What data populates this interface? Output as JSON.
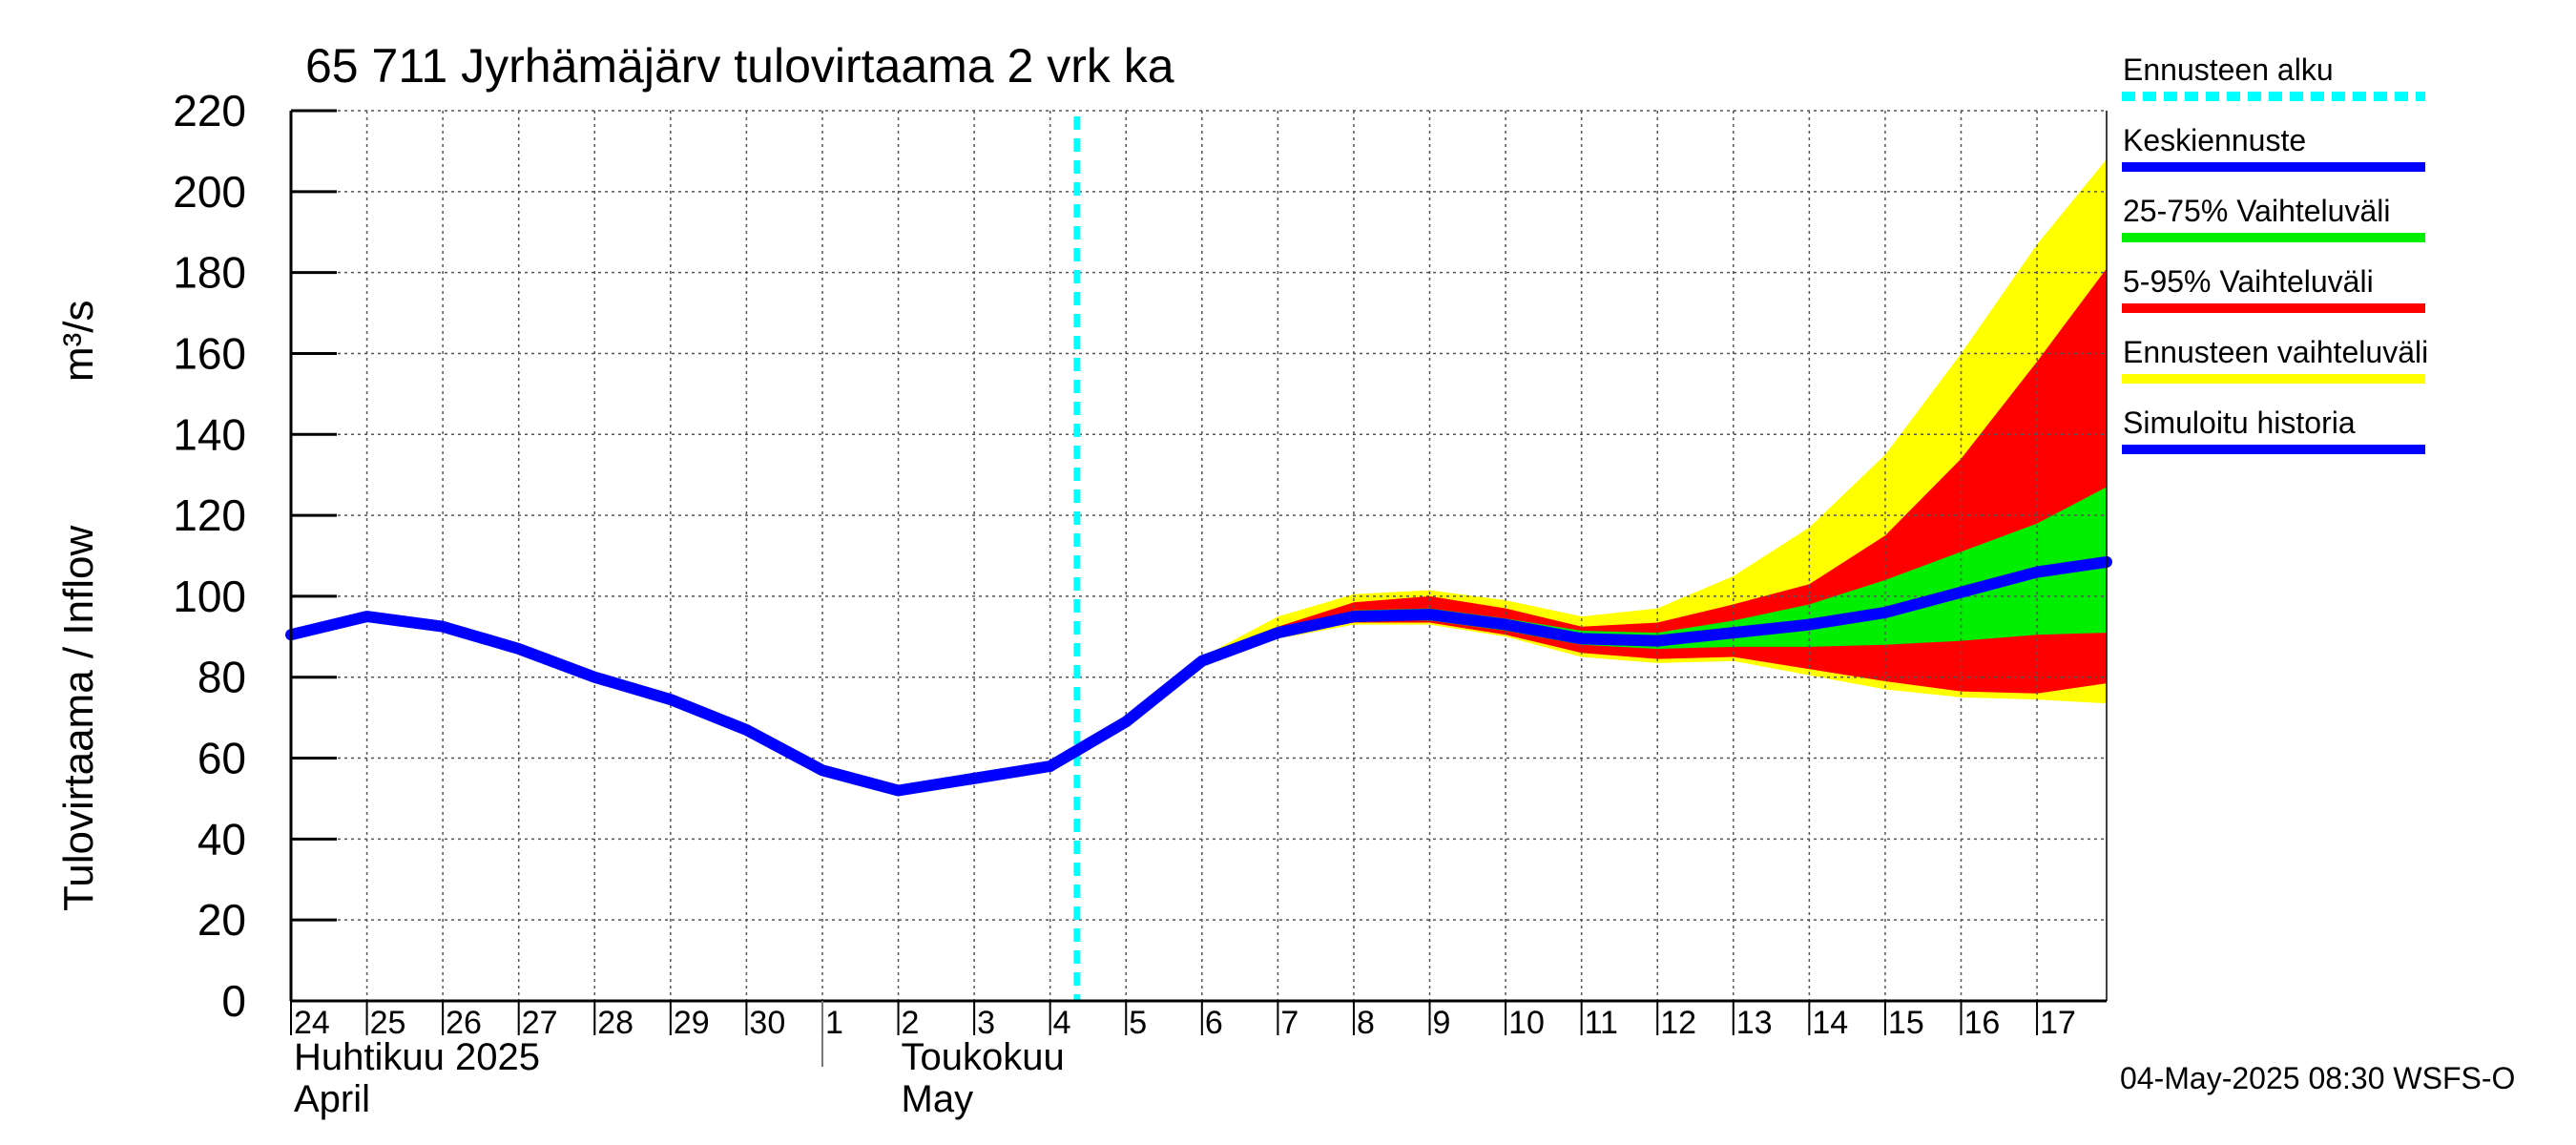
{
  "chart_data": {
    "type": "area",
    "title": "65 711 Jyrhämäjärv tulovirtaama 2 vrk ka",
    "ylabel_fi": "Tulovirtaama / Inflow",
    "yunit": "m³/s",
    "ylim": [
      0,
      220
    ],
    "yticks": [
      0,
      20,
      40,
      60,
      80,
      100,
      120,
      140,
      160,
      180,
      200,
      220
    ],
    "xlim": [
      "2025-04-24",
      "2025-05-17T22:00"
    ],
    "x_day_labels": [
      {
        "date": "2025-04-24",
        "label": "24"
      },
      {
        "date": "2025-04-25",
        "label": "25"
      },
      {
        "date": "2025-04-26",
        "label": "26"
      },
      {
        "date": "2025-04-27",
        "label": "27"
      },
      {
        "date": "2025-04-28",
        "label": "28"
      },
      {
        "date": "2025-04-29",
        "label": "29"
      },
      {
        "date": "2025-04-30",
        "label": "30"
      },
      {
        "date": "2025-05-01",
        "label": "1"
      },
      {
        "date": "2025-05-02",
        "label": "2"
      },
      {
        "date": "2025-05-03",
        "label": "3"
      },
      {
        "date": "2025-05-04",
        "label": "4"
      },
      {
        "date": "2025-05-05",
        "label": "5"
      },
      {
        "date": "2025-05-06",
        "label": "6"
      },
      {
        "date": "2025-05-07",
        "label": "7"
      },
      {
        "date": "2025-05-08",
        "label": "8"
      },
      {
        "date": "2025-05-09",
        "label": "9"
      },
      {
        "date": "2025-05-10",
        "label": "10"
      },
      {
        "date": "2025-05-11",
        "label": "11"
      },
      {
        "date": "2025-05-12",
        "label": "12"
      },
      {
        "date": "2025-05-13",
        "label": "13"
      },
      {
        "date": "2025-05-14",
        "label": "14"
      },
      {
        "date": "2025-05-15",
        "label": "15"
      },
      {
        "date": "2025-05-16",
        "label": "16"
      },
      {
        "date": "2025-05-17",
        "label": "17"
      }
    ],
    "month_labels": [
      {
        "date": "2025-04-24",
        "fi": "Huhtikuu  2025",
        "en": "April"
      },
      {
        "date": "2025-05-02",
        "fi": "Toukokuu",
        "en": "May"
      }
    ],
    "month_boundary": "2025-05-01",
    "forecast_start": "2025-05-04T08:30",
    "grid": true,
    "legend_position": "right",
    "simulated_history": {
      "name": "Simuloitu historia",
      "color": "#0000ff",
      "points": [
        [
          "2025-04-24",
          90.5
        ],
        [
          "2025-04-25",
          95
        ],
        [
          "2025-04-26",
          92.5
        ],
        [
          "2025-04-27",
          87
        ],
        [
          "2025-04-28",
          80
        ],
        [
          "2025-04-29",
          74.5
        ],
        [
          "2025-04-30",
          67
        ],
        [
          "2025-05-01",
          57
        ],
        [
          "2025-05-02",
          52
        ],
        [
          "2025-05-03",
          55
        ],
        [
          "2025-05-04",
          58
        ]
      ]
    },
    "forecast": {
      "dates": [
        "2025-05-04",
        "2025-05-05",
        "2025-05-06",
        "2025-05-07",
        "2025-05-08",
        "2025-05-09",
        "2025-05-10",
        "2025-05-11",
        "2025-05-12",
        "2025-05-13",
        "2025-05-14",
        "2025-05-15",
        "2025-05-16",
        "2025-05-17",
        "2025-05-17T22:00"
      ],
      "median": {
        "name": "Keskiennuste",
        "color": "#0000ff",
        "values": [
          58,
          69,
          84,
          91,
          95,
          95.5,
          93,
          89.5,
          89,
          91,
          93,
          96,
          101,
          106,
          108.5
        ]
      },
      "p25_75": {
        "name": "25-75% Vaihteluväli",
        "color": "#00ee00",
        "low": [
          58,
          69,
          84,
          90.5,
          94,
          94,
          91.5,
          88,
          87,
          87.5,
          87.5,
          88,
          89,
          90.5,
          91
        ],
        "high": [
          58,
          69,
          84,
          91.5,
          96.5,
          97,
          94.5,
          91.5,
          91,
          94,
          98,
          104,
          111,
          118,
          127
        ]
      },
      "p5_95": {
        "name": "5-95% Vaihteluväli",
        "color": "#ff0000",
        "low": [
          58,
          69,
          84,
          90,
          93.5,
          93.5,
          90.5,
          86,
          84.5,
          85,
          82,
          79,
          76.5,
          76,
          78.5
        ],
        "high": [
          58,
          69,
          84.5,
          92.5,
          98.5,
          100,
          97,
          92.5,
          93.5,
          98,
          103,
          115,
          134,
          158,
          181
        ]
      },
      "range": {
        "name": "Ennusteen vaihteluväli",
        "color": "#ffff00",
        "low": [
          58,
          69,
          84,
          89.5,
          93,
          93,
          90,
          85,
          83.5,
          84,
          80.5,
          77,
          75,
          74.5,
          73.5
        ],
        "high": [
          58,
          69,
          85,
          95,
          100.5,
          101.5,
          99,
          95,
          97,
          105,
          117,
          135,
          160,
          187,
          208
        ]
      }
    }
  },
  "legend": [
    {
      "label": "Ennusteen alku",
      "color": "#00ffff",
      "style": "dashed"
    },
    {
      "label": "Keskiennuste",
      "color": "#0000ff",
      "style": "solid"
    },
    {
      "label": "25-75% Vaihteluväli",
      "color": "#00ee00",
      "style": "solid"
    },
    {
      "label": "5-95% Vaihteluväli",
      "color": "#ff0000",
      "style": "solid"
    },
    {
      "label": "Ennusteen vaihteluväli",
      "color": "#ffff00",
      "style": "solid"
    },
    {
      "label": "Simuloitu historia",
      "color": "#0000ff",
      "style": "solid"
    }
  ],
  "footer": "04-May-2025 08:30 WSFS-O"
}
